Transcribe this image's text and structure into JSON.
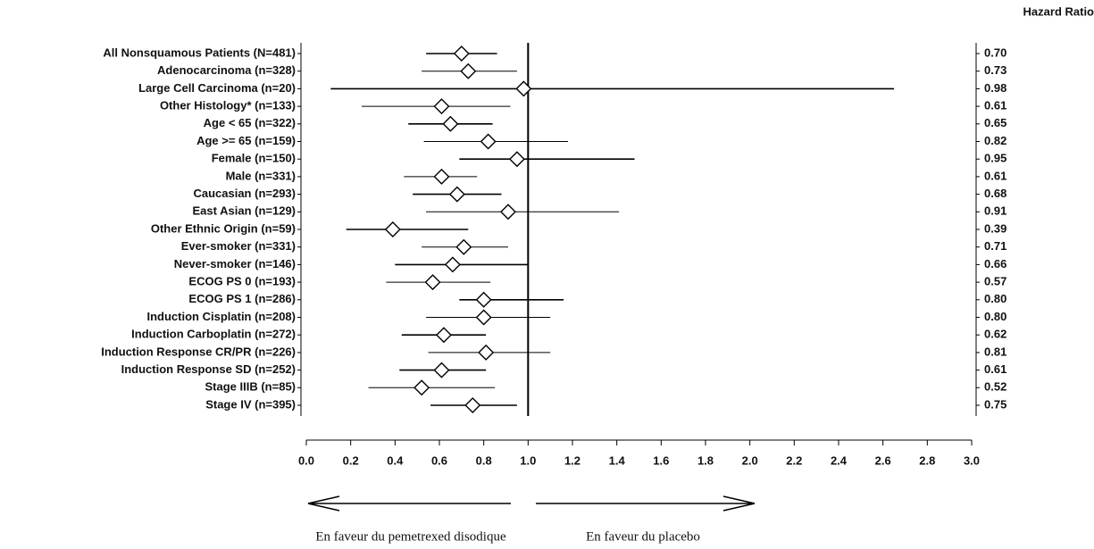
{
  "chart_data": {
    "type": "forest",
    "title": "Hazard Ratio",
    "categories": [
      "All Nonsquamous Patients (N=481)",
      "Adenocarcinoma (n=328)",
      "Large Cell Carcinoma (n=20)",
      "Other Histology* (n=133)",
      "Age < 65 (n=322)",
      "Age >= 65 (n=159)",
      "Female (n=150)",
      "Male (n=331)",
      "Caucasian (n=293)",
      "East Asian (n=129)",
      "Other Ethnic Origin (n=59)",
      "Ever-smoker (n=331)",
      "Never-smoker (n=146)",
      "ECOG PS 0 (n=193)",
      "ECOG PS 1 (n=286)",
      "Induction Cisplatin (n=208)",
      "Induction Carboplatin (n=272)",
      "Induction Response CR/PR (n=226)",
      "Induction Response SD (n=252)",
      "Stage IIIB (n=85)",
      "Stage IV (n=395)"
    ],
    "values": [
      0.7,
      0.73,
      0.98,
      0.61,
      0.65,
      0.82,
      0.95,
      0.61,
      0.68,
      0.91,
      0.39,
      0.71,
      0.66,
      0.57,
      0.8,
      0.8,
      0.62,
      0.81,
      0.61,
      0.52,
      0.75
    ],
    "value_labels": [
      "0.70",
      "0.73",
      "0.98",
      "0.61",
      "0.65",
      "0.82",
      "0.95",
      "0.61",
      "0.68",
      "0.91",
      "0.39",
      "0.71",
      "0.66",
      "0.57",
      "0.80",
      "0.80",
      "0.62",
      "0.81",
      "0.61",
      "0.52",
      "0.75"
    ],
    "ci_lower": [
      0.54,
      0.52,
      0.11,
      0.25,
      0.46,
      0.53,
      0.69,
      0.44,
      0.48,
      0.54,
      0.18,
      0.52,
      0.4,
      0.36,
      0.69,
      0.54,
      0.43,
      0.55,
      0.42,
      0.28,
      0.56
    ],
    "ci_upper": [
      0.86,
      0.95,
      2.65,
      0.92,
      0.84,
      1.18,
      1.48,
      0.77,
      0.88,
      1.41,
      0.73,
      0.91,
      1.0,
      0.83,
      1.16,
      1.1,
      0.81,
      1.1,
      0.81,
      0.85,
      0.95
    ],
    "reference_line": 1,
    "xlim": [
      0,
      3
    ],
    "xticks": [
      {
        "value": 0,
        "label": "0.0"
      },
      0.2,
      0.4,
      0.6,
      0.8,
      {
        "value": 1,
        "label": "1.0"
      },
      1.2,
      1.4,
      1.6,
      1.8,
      {
        "value": 2,
        "label": "2.0"
      },
      2.2,
      2.4,
      2.6,
      2.8,
      {
        "value": 3,
        "label": "3.0"
      }
    ],
    "annotations": [
      "En faveur du pemetrexed disodique",
      "En faveur du placebo"
    ]
  }
}
